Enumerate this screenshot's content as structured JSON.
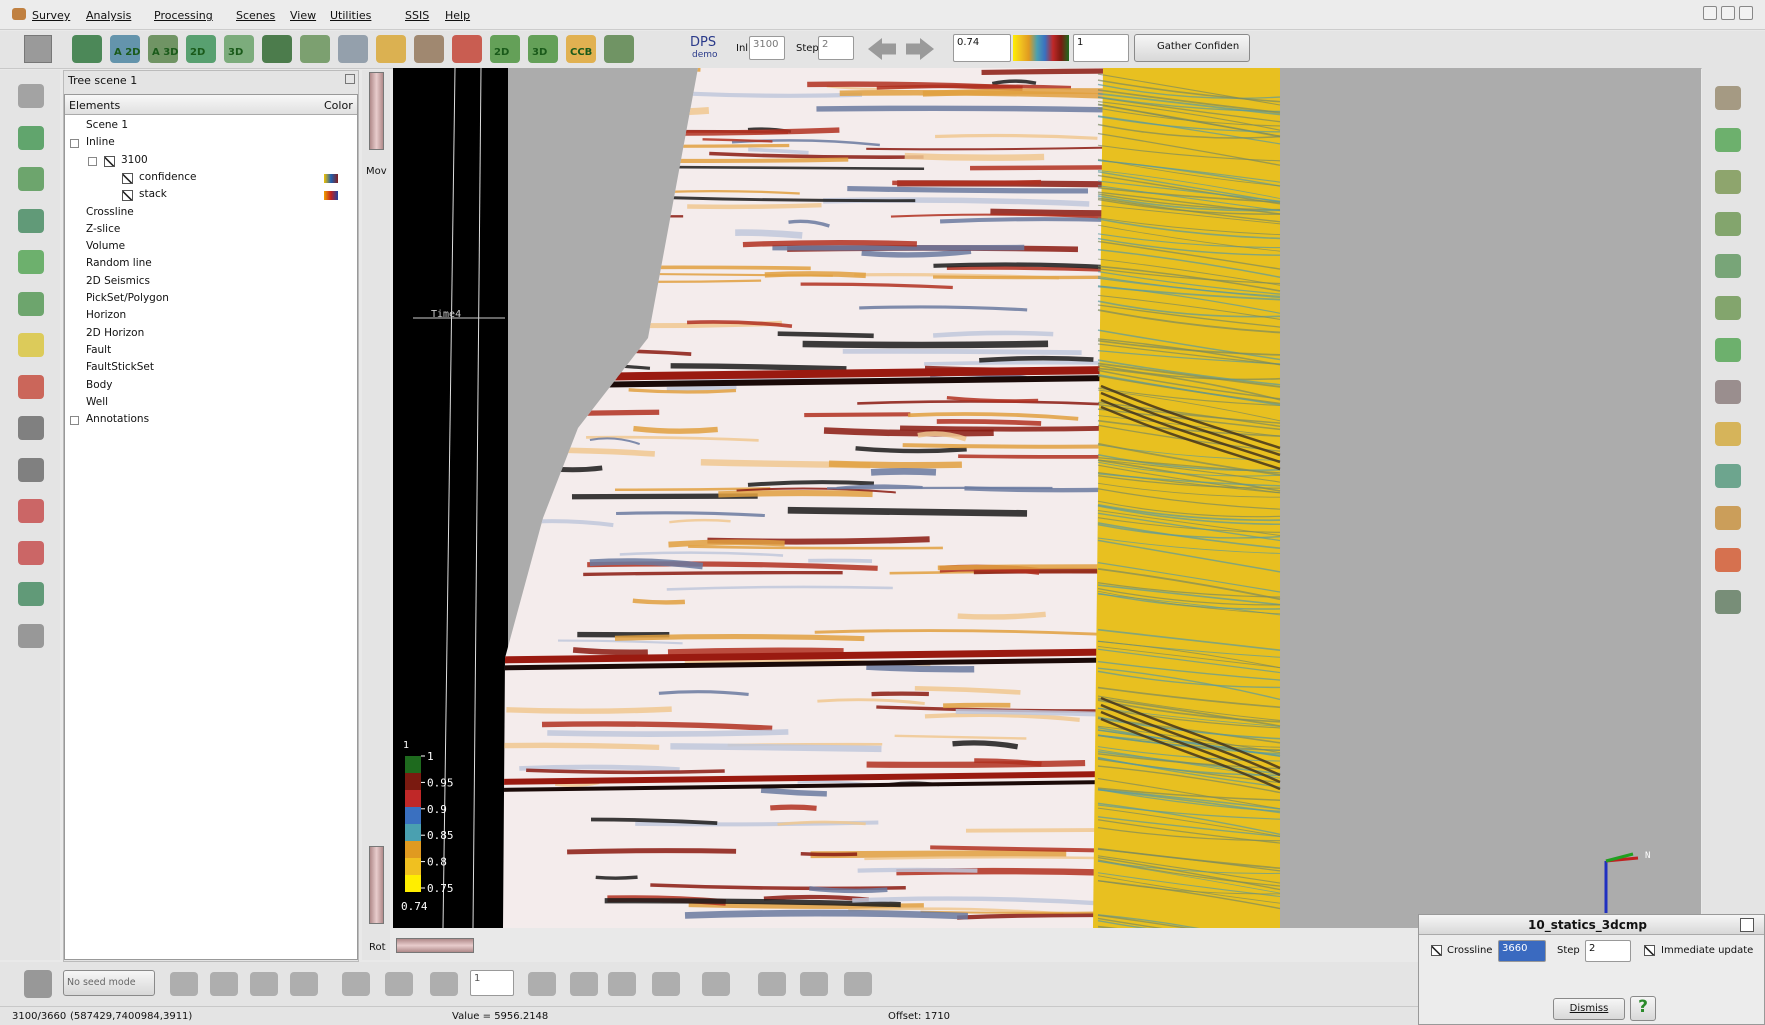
{
  "menu": [
    "Survey",
    "Analysis",
    "Processing",
    "Scenes",
    "View",
    "Utilities",
    "SSIS",
    "Help"
  ],
  "toolbar": {
    "inline_label": "Inl",
    "inline": "3100",
    "step_label": "Step",
    "step": "2",
    "clip_min": "0.74",
    "clip_max": "1",
    "colortable": "Gather Confiden",
    "icon_labels": [
      "A 2D",
      "A 3D",
      "2D",
      "3D",
      "2D",
      "3D",
      "CCB"
    ],
    "dps": "DPS",
    "demo": "demo"
  },
  "tree": {
    "title": "Tree scene 1",
    "columns": [
      "Elements",
      "Color"
    ],
    "items": [
      {
        "label": "Scene 1"
      },
      {
        "label": "Inline",
        "children": [
          {
            "label": "3100",
            "checked": true,
            "children": [
              {
                "label": "confidence",
                "checked": true,
                "swatch": [
                  "#f2c200",
                  "#2060b0",
                  "#802020"
                ]
              },
              {
                "label": "stack",
                "checked": true,
                "swatch": [
                  "#f0a000",
                  "#c02020",
                  "#2040a0"
                ]
              }
            ]
          }
        ]
      },
      {
        "label": "Crossline"
      },
      {
        "label": "Z-slice"
      },
      {
        "label": "Volume"
      },
      {
        "label": "Random line"
      },
      {
        "label": "2D Seismics"
      },
      {
        "label": "PickSet/Polygon"
      },
      {
        "label": "Horizon"
      },
      {
        "label": "2D Horizon"
      },
      {
        "label": "Fault"
      },
      {
        "label": "FaultStickSet"
      },
      {
        "label": "Body"
      },
      {
        "label": "Well"
      },
      {
        "label": "Annotations",
        "collapsed": true
      }
    ]
  },
  "scene": {
    "slider_top": "Mov",
    "slider_bottom": "Rot",
    "annotation": "Time4",
    "axis_n": "N",
    "colorbar": {
      "top": "1",
      "labels": [
        "1",
        "0.95",
        "0.9",
        "0.85",
        "0.8",
        "0.75"
      ],
      "min": "0.74",
      "colors": [
        "#1e6a1e",
        "#7a1a10",
        "#c02828",
        "#3a70c0",
        "#4aa0b0",
        "#e09a20",
        "#f0c020",
        "#ffee00"
      ]
    }
  },
  "bottom_toolbar": {
    "seed_mode": "No seed mode",
    "count": "1"
  },
  "status": {
    "position": "3100/3660",
    "coords": "(587429,7400984,3911)",
    "value": "Value = 5956.2148",
    "offset": "Offset: 1710"
  },
  "dialog": {
    "title": "10_statics_3dcmp",
    "crossline_label": "Crossline",
    "crossline": "3660",
    "step_label": "Step",
    "step": "2",
    "immediate": "Immediate update",
    "dismiss": "Dismiss",
    "help": "?"
  }
}
